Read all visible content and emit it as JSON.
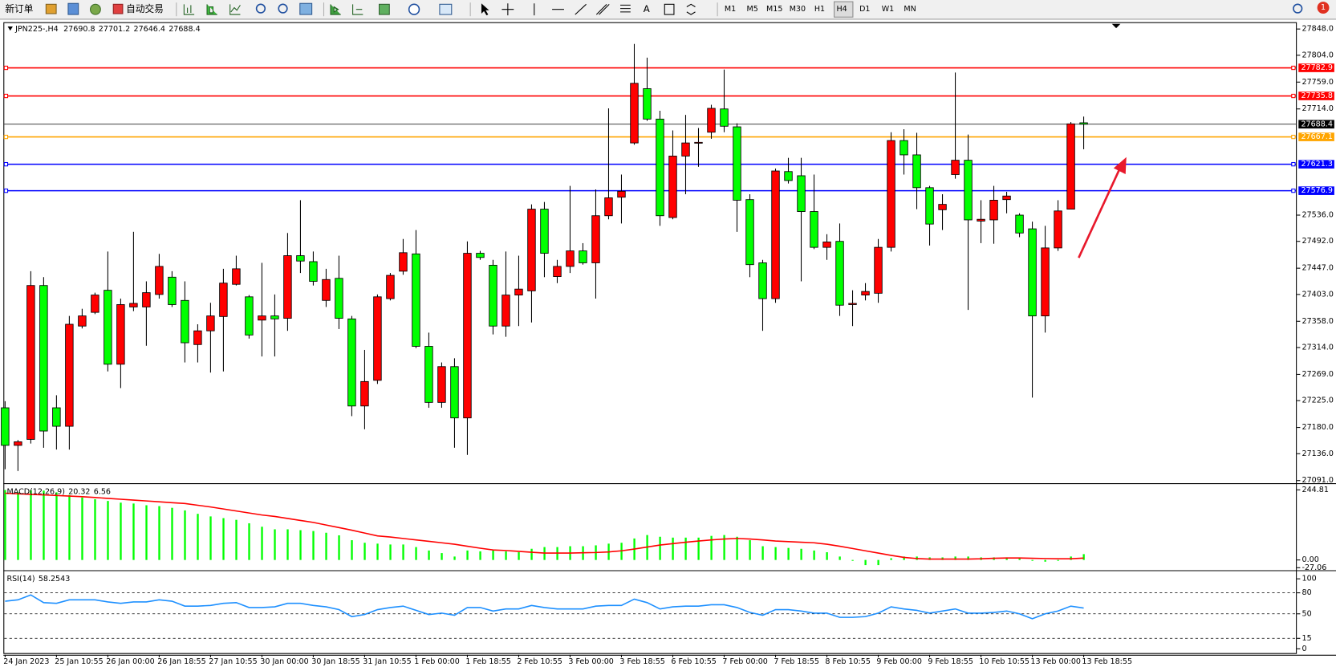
{
  "toolbar": {
    "new_order": "新订单",
    "auto_trading": "自动交易",
    "timeframes": [
      "M1",
      "M5",
      "M15",
      "M30",
      "H1",
      "H4",
      "D1",
      "W1",
      "MN"
    ],
    "text_tool": "A",
    "badge": "1"
  },
  "chart_data": [
    {
      "type": "candlestick",
      "title": "JPN225-,H4",
      "up_color": "#ff0000",
      "down_color": "#00ff00",
      "last_color": "#000000",
      "categories": [
        "24 Jan 2023",
        null,
        null,
        null,
        "25 Jan 10:55",
        null,
        null,
        null,
        "26 Jan 00:00",
        null,
        null,
        null,
        "26 Jan 18:55",
        null,
        null,
        null,
        "27 Jan 10:55",
        null,
        null,
        null,
        "30 Jan 00:00",
        null,
        null,
        null,
        "30 Jan 18:55",
        null,
        null,
        null,
        "31 Jan 10:55",
        null,
        null,
        null,
        "1 Feb 00:00",
        null,
        null,
        null,
        "1 Feb 18:55",
        null,
        null,
        null,
        "2 Feb 10:55",
        null,
        null,
        null,
        "3 Feb 00:00",
        null,
        null,
        null,
        "3 Feb 18:55",
        null,
        null,
        null,
        "6 Feb 10:55",
        null,
        null,
        null,
        "7 Feb 00:00",
        null,
        null,
        null,
        "7 Feb 18:55",
        null,
        null,
        null,
        "8 Feb 10:55",
        null,
        null,
        null,
        "9 Feb 00:00",
        null,
        null,
        null,
        "9 Feb 18:55",
        null,
        null,
        null,
        "10 Feb 10:55",
        null,
        null,
        null,
        "13 Feb 00:00",
        null,
        null,
        null,
        "13 Feb 18:55"
      ],
      "open": [
        27213,
        27150,
        27160,
        27418,
        27213,
        27182,
        27350,
        27373,
        27410,
        27286,
        27382,
        27382,
        27403,
        27432,
        27393,
        27319,
        27342,
        27366,
        27420,
        27399,
        27360,
        27367,
        27363,
        27468,
        27458,
        27393,
        27430,
        27362,
        27216,
        27259,
        27396,
        27442,
        27471,
        27316,
        27222,
        27282,
        27196,
        27472,
        27452,
        27350,
        27402,
        27409,
        27546,
        27433,
        27450,
        27476,
        27456,
        27535,
        27566,
        27657,
        27748,
        27697,
        27532,
        27635,
        27657,
        27675,
        27714,
        27684,
        27562,
        27456,
        27396,
        27609,
        27602,
        27542,
        27482,
        27492,
        27386,
        27402,
        27405,
        27482,
        27661,
        27637,
        27582,
        27545,
        27604,
        27628,
        27526,
        27528,
        27562,
        27536,
        27513,
        27367,
        27481,
        27546,
        27690.8
      ],
      "high": [
        27224,
        27159,
        27442,
        27432,
        27234,
        27367,
        27379,
        27406,
        27475,
        27396,
        27508,
        27425,
        27471,
        27442,
        27425,
        27353,
        27389,
        27446,
        27468,
        27402,
        27456,
        27403,
        27506,
        27561,
        27475,
        27446,
        27468,
        27367,
        27310,
        27403,
        27439,
        27496,
        27511,
        27339,
        27289,
        27296,
        27492,
        27476,
        27461,
        27475,
        27468,
        27554,
        27558,
        27461,
        27585,
        27489,
        27579,
        27715,
        27604,
        27823,
        27800,
        27711,
        27678,
        27704,
        27682,
        27721,
        27780,
        27690,
        27571,
        27461,
        27614,
        27632,
        27632,
        27604,
        27504,
        27522,
        27410,
        27422,
        27496,
        27675,
        27680,
        27674,
        27585,
        27571,
        27775,
        27671,
        27561,
        27585,
        27575,
        27539,
        27525,
        27518,
        27561,
        27692,
        27701.2
      ],
      "low": [
        27110,
        27107,
        27153,
        27146,
        27143,
        27143,
        27346,
        27370,
        27274,
        27246,
        27375,
        27317,
        27396,
        27382,
        27289,
        27289,
        27272,
        27274,
        27418,
        27329,
        27299,
        27299,
        27342,
        27439,
        27418,
        27382,
        27345,
        27199,
        27177,
        27253,
        27393,
        27436,
        27313,
        27213,
        27213,
        27146,
        27134,
        27461,
        27336,
        27332,
        27350,
        27356,
        27432,
        27422,
        27439,
        27453,
        27396,
        27529,
        27522,
        27654,
        27694,
        27518,
        27529,
        27571,
        27617,
        27664,
        27675,
        27508,
        27432,
        27342,
        27389,
        27589,
        27425,
        27479,
        27461,
        27367,
        27350,
        27393,
        27389,
        27475,
        27604,
        27546,
        27485,
        27511,
        27597,
        27377,
        27489,
        27488,
        27539,
        27499,
        27230,
        27339,
        27476,
        27546,
        27646.4
      ],
      "close": [
        27150,
        27156,
        27418,
        27174,
        27182,
        27353,
        27367,
        27402,
        27286,
        27386,
        27388,
        27406,
        27450,
        27386,
        27322,
        27342,
        27367,
        27422,
        27446,
        27335,
        27367,
        27362,
        27468,
        27459,
        27425,
        27428,
        27363,
        27216,
        27257,
        27399,
        27435,
        27473,
        27316,
        27222,
        27282,
        27196,
        27472,
        27465,
        27350,
        27402,
        27412,
        27546,
        27472,
        27450,
        27476,
        27456,
        27535,
        27565,
        27576,
        27757,
        27697,
        27535,
        27635,
        27657,
        27658,
        27715,
        27685,
        27561,
        27453,
        27396,
        27610,
        27594,
        27542,
        27482,
        27491,
        27385,
        27388,
        27408,
        27482,
        27661,
        27637,
        27582,
        27521,
        27554,
        27628,
        27528,
        27529,
        27561,
        27568,
        27506,
        27367,
        27481,
        27543,
        27689,
        27688.4
      ],
      "levels": [
        {
          "value": 27782.9,
          "color": "#ff0000"
        },
        {
          "value": 27735.8,
          "color": "#ff0000"
        },
        {
          "value": 27667.1,
          "color": "#ffa500"
        },
        {
          "value": 27621.3,
          "color": "#0000ff"
        },
        {
          "value": 27576.9,
          "color": "#0000ff"
        }
      ],
      "ylim": [
        27088,
        27858
      ],
      "yticks": [
        {
          "value": 27848,
          "label": "27848.0"
        },
        {
          "value": 27804,
          "label": "27804.0"
        },
        {
          "value": 27759,
          "label": "27759.0"
        },
        {
          "value": 27714,
          "label": "27714.0"
        },
        {
          "value": 27536,
          "label": "27536.0"
        },
        {
          "value": 27492,
          "label": "27492.0"
        },
        {
          "value": 27447,
          "label": "27447.0"
        },
        {
          "value": 27403,
          "label": "27403.0"
        },
        {
          "value": 27358,
          "label": "27358.0"
        },
        {
          "value": 27314,
          "label": "27314.0"
        },
        {
          "value": 27269,
          "label": "27269.0"
        },
        {
          "value": 27225,
          "label": "27225.0"
        },
        {
          "value": 27180,
          "label": "27180.0"
        },
        {
          "value": 27136,
          "label": "27136.0"
        },
        {
          "value": 27091,
          "label": "27091.0"
        }
      ]
    },
    {
      "type": "macd",
      "title": "MACD(12,26,9)",
      "histogram": {
        "color": "#00ff00",
        "values": [
          244,
          236,
          243,
          242,
          236,
          227,
          218,
          212,
          206,
          200,
          197,
          191,
          188,
          182,
          173,
          161,
          152,
          146,
          140,
          128,
          116,
          107,
          107,
          104,
          101,
          95,
          86,
          69,
          60,
          57,
          54,
          54,
          45,
          33,
          24,
          12,
          33,
          30,
          33,
          30,
          27,
          39,
          45,
          45,
          48,
          48,
          51,
          57,
          60,
          75,
          87,
          81,
          78,
          78,
          78,
          84,
          87,
          81,
          69,
          48,
          45,
          42,
          39,
          33,
          27,
          12,
          -3,
          -18,
          -18,
          6,
          12,
          12,
          9,
          9,
          12,
          12,
          9,
          9,
          9,
          6,
          -3,
          -6,
          -3,
          12,
          20.32
        ]
      },
      "signal": {
        "color": "#ff0000",
        "values": [
          233,
          231,
          229,
          227,
          225,
          223,
          221,
          218,
          215,
          212,
          209,
          206,
          203,
          200,
          197,
          191,
          185,
          178,
          171,
          164,
          157,
          152,
          145,
          138,
          131,
          122,
          113,
          104,
          94,
          84,
          80,
          75,
          70,
          65,
          60,
          55,
          48,
          41,
          35,
          33,
          30,
          27,
          24,
          24,
          24,
          25,
          26,
          28,
          32,
          38,
          45,
          52,
          57,
          62,
          66,
          70,
          73,
          75,
          73,
          70,
          66,
          64,
          62,
          60,
          55,
          48,
          40,
          32,
          24,
          16,
          9,
          5,
          3,
          3,
          3,
          3,
          4,
          6,
          7,
          7,
          6,
          5,
          4,
          4,
          6.56
        ]
      },
      "ylim": [
        -30,
        265
      ],
      "yticks": [
        244.81,
        {
          "value": 0,
          "label": "0.00"
        },
        -27.06
      ]
    },
    {
      "type": "rsi",
      "title": "RSI(14)",
      "color": "#1e90ff",
      "values": [
        68,
        70,
        77,
        66,
        65,
        70,
        70,
        70,
        67,
        65,
        67,
        67,
        70,
        68,
        61,
        61,
        62,
        65,
        66,
        59,
        59,
        60,
        65,
        65,
        62,
        60,
        56,
        46,
        49,
        56,
        59,
        61,
        55,
        49,
        51,
        48,
        59,
        59,
        54,
        57,
        57,
        62,
        59,
        57,
        57,
        57,
        61,
        62,
        62,
        71,
        66,
        57,
        60,
        61,
        61,
        63,
        63,
        59,
        52,
        48,
        56,
        56,
        54,
        51,
        51,
        45,
        45,
        46,
        51,
        60,
        57,
        55,
        51,
        54,
        57,
        51,
        51,
        52,
        54,
        50,
        43,
        50,
        54,
        61,
        58.2543
      ],
      "levels": [
        80,
        50,
        15
      ],
      "ylim": [
        -8.5,
        111
      ],
      "yticks": [
        100,
        80,
        50,
        15,
        0
      ]
    }
  ]
}
